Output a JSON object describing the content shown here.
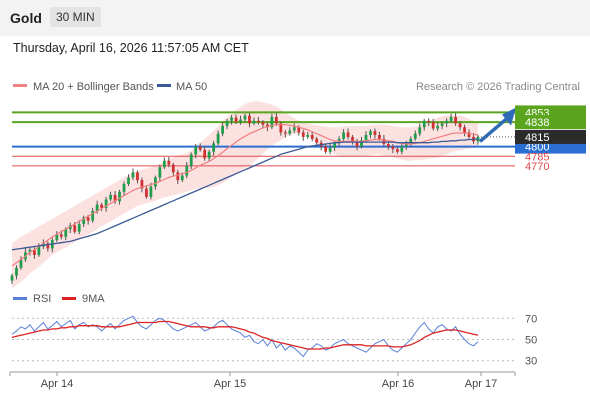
{
  "header": {
    "title": "Gold",
    "timeframe": "30 MIN"
  },
  "datetime": "Thursday, April 16, 2026 11:57:05 AM CET",
  "legend": {
    "bb_label": "MA 20 + Bollinger Bands",
    "ma50_label": "MA 50",
    "copyright": "Research © 2026 Trading Central",
    "rsi_label": "RSI",
    "rsi_ma_label": "9MA"
  },
  "colors": {
    "green_level": "#5aa51d",
    "blue_level": "#2a6ed4",
    "red_level": "#e04b4b",
    "current_price_bg": "#2b2b2b",
    "band_fill": "#fbd9d9",
    "ma20": "#f08080",
    "ma50": "#3a5a96",
    "rsi": "#5a7fd8",
    "rsi_ma": "#dd2222",
    "arrow": "#2f6ab4"
  },
  "chart_data": [
    {
      "type": "candlestick",
      "title": "",
      "x_ticks": [
        "Apr 14",
        "Apr 15",
        "Apr 16",
        "Apr 17"
      ],
      "ylim": [
        4590,
        4880
      ],
      "levels": [
        {
          "value": 4853,
          "label": "4853",
          "kind": "resistance"
        },
        {
          "value": 4838,
          "label": "4838",
          "kind": "resistance"
        },
        {
          "value": 4800,
          "label": "4800",
          "kind": "pivot"
        },
        {
          "value": 4785,
          "label": "4785",
          "kind": "support"
        },
        {
          "value": 4770,
          "label": "4770",
          "kind": "support"
        }
      ],
      "current_price": {
        "value": 4815,
        "label": "4815"
      },
      "close": [
        4600,
        4612,
        4625,
        4636,
        4640,
        4632,
        4645,
        4650,
        4642,
        4655,
        4664,
        4660,
        4672,
        4678,
        4668,
        4680,
        4690,
        4685,
        4700,
        4710,
        4705,
        4718,
        4725,
        4715,
        4730,
        4742,
        4752,
        4760,
        4748,
        4735,
        4722,
        4738,
        4752,
        4768,
        4778,
        4772,
        4760,
        4748,
        4755,
        4770,
        4788,
        4800,
        4795,
        4782,
        4792,
        4805,
        4820,
        4832,
        4840,
        4845,
        4838,
        4842,
        4848,
        4836,
        4840,
        4838,
        4834,
        4830,
        4846,
        4836,
        4822,
        4820,
        4825,
        4830,
        4822,
        4815,
        4818,
        4812,
        4806,
        4800,
        4792,
        4798,
        4806,
        4812,
        4822,
        4815,
        4808,
        4800,
        4810,
        4818,
        4824,
        4818,
        4812,
        4804,
        4800,
        4796,
        4792,
        4800,
        4806,
        4812,
        4820,
        4830,
        4840,
        4838,
        4828,
        4832,
        4836,
        4840,
        4846,
        4836,
        4830,
        4822,
        4815,
        4808,
        4815
      ],
      "ma20": [
        4615,
        4620,
        4625,
        4630,
        4636,
        4640,
        4645,
        4650,
        4655,
        4660,
        4664,
        4668,
        4672,
        4676,
        4680,
        4684,
        4688,
        4692,
        4696,
        4700,
        4704,
        4708,
        4712,
        4716,
        4720,
        4724,
        4728,
        4732,
        4735,
        4737,
        4739,
        4741,
        4743,
        4746,
        4749,
        4752,
        4754,
        4756,
        4758,
        4760,
        4763,
        4767,
        4771,
        4774,
        4777,
        4781,
        4786,
        4791,
        4797,
        4802,
        4807,
        4812,
        4816,
        4820,
        4823,
        4826,
        4829,
        4831,
        4833,
        4834,
        4834,
        4834,
        4833,
        4832,
        4830,
        4828,
        4826,
        4823,
        4820,
        4817,
        4814,
        4811,
        4809,
        4808,
        4808,
        4808,
        4808,
        4808,
        4808,
        4809,
        4810,
        4811,
        4811,
        4810,
        4809,
        4808,
        4806,
        4805,
        4804,
        4804,
        4805,
        4806,
        4808,
        4810,
        4812,
        4814,
        4816,
        4818,
        4820,
        4821,
        4821,
        4821,
        4820,
        4819,
        4818
      ],
      "bb_upper": [
        4650,
        4655,
        4660,
        4664,
        4668,
        4672,
        4676,
        4680,
        4684,
        4688,
        4692,
        4696,
        4700,
        4704,
        4708,
        4712,
        4716,
        4720,
        4724,
        4728,
        4732,
        4736,
        4740,
        4744,
        4748,
        4752,
        4756,
        4760,
        4762,
        4764,
        4766,
        4768,
        4770,
        4773,
        4777,
        4781,
        4784,
        4786,
        4788,
        4790,
        4794,
        4800,
        4806,
        4812,
        4818,
        4825,
        4832,
        4839,
        4846,
        4852,
        4857,
        4862,
        4866,
        4869,
        4870,
        4870,
        4869,
        4867,
        4865,
        4862,
        4858,
        4853,
        4848,
        4844,
        4840,
        4838,
        4836,
        4834,
        4833,
        4832,
        4831,
        4830,
        4830,
        4830,
        4831,
        4832,
        4832,
        4832,
        4832,
        4832,
        4833,
        4834,
        4834,
        4834,
        4833,
        4832,
        4831,
        4830,
        4830,
        4830,
        4831,
        4833,
        4836,
        4839,
        4842,
        4845,
        4847,
        4848,
        4849,
        4849,
        4848,
        4846,
        4843,
        4840,
        4836
      ],
      "bb_lower": [
        4580,
        4585,
        4590,
        4596,
        4604,
        4608,
        4614,
        4620,
        4626,
        4632,
        4636,
        4640,
        4644,
        4648,
        4652,
        4656,
        4660,
        4664,
        4668,
        4672,
        4676,
        4680,
        4684,
        4688,
        4692,
        4696,
        4700,
        4704,
        4708,
        4710,
        4712,
        4714,
        4716,
        4719,
        4721,
        4723,
        4724,
        4726,
        4728,
        4730,
        4732,
        4734,
        4736,
        4736,
        4736,
        4737,
        4740,
        4743,
        4748,
        4752,
        4757,
        4762,
        4766,
        4771,
        4776,
        4782,
        4789,
        4795,
        4801,
        4806,
        4810,
        4815,
        4818,
        4820,
        4820,
        4818,
        4816,
        4812,
        4807,
        4802,
        4797,
        4792,
        4788,
        4786,
        4785,
        4784,
        4784,
        4784,
        4784,
        4786,
        4787,
        4788,
        4788,
        4786,
        4785,
        4784,
        4781,
        4780,
        4778,
        4778,
        4779,
        4779,
        4780,
        4781,
        4782,
        4783,
        4785,
        4788,
        4791,
        4793,
        4794,
        4796,
        4797,
        4798,
        4800
      ],
      "ma50": [
        4640,
        4641,
        4642,
        4643,
        4644,
        4645,
        4646,
        4647,
        4648,
        4649,
        4650,
        4651,
        4652,
        4653,
        4655,
        4657,
        4659,
        4661,
        4663,
        4665,
        4668,
        4671,
        4674,
        4677,
        4680,
        4683,
        4686,
        4689,
        4692,
        4695,
        4698,
        4701,
        4704,
        4707,
        4710,
        4713,
        4716,
        4719,
        4722,
        4725,
        4728,
        4731,
        4734,
        4737,
        4740,
        4743,
        4746,
        4749,
        4752,
        4755,
        4758,
        4761,
        4764,
        4767,
        4770,
        4773,
        4776,
        4779,
        4782,
        4785,
        4788,
        4790,
        4792,
        4794,
        4796,
        4798,
        4800,
        4801,
        4802,
        4803,
        4804,
        4805,
        4806,
        4806,
        4807,
        4807,
        4807,
        4807,
        4807,
        4807,
        4807,
        4807,
        4807,
        4807,
        4807,
        4807,
        4806,
        4806,
        4806,
        4806,
        4806,
        4806,
        4806,
        4806,
        4807,
        4807,
        4808,
        4808,
        4809,
        4809,
        4810,
        4810,
        4811,
        4811,
        4812
      ]
    },
    {
      "type": "line",
      "title": "",
      "ylim": [
        25,
        75
      ],
      "y_ticks": [
        70,
        50,
        30
      ],
      "series": [
        {
          "name": "RSI",
          "values": [
            55,
            58,
            62,
            60,
            64,
            58,
            62,
            66,
            60,
            63,
            67,
            62,
            65,
            68,
            60,
            64,
            66,
            62,
            64,
            62,
            58,
            62,
            65,
            60,
            64,
            68,
            70,
            72,
            66,
            62,
            60,
            64,
            68,
            70,
            68,
            64,
            60,
            58,
            60,
            62,
            64,
            66,
            62,
            58,
            60,
            62,
            66,
            68,
            64,
            60,
            58,
            56,
            52,
            54,
            48,
            46,
            50,
            44,
            50,
            42,
            46,
            40,
            44,
            42,
            38,
            34,
            40,
            42,
            46,
            44,
            40,
            42,
            46,
            48,
            50,
            46,
            44,
            42,
            40,
            38,
            42,
            46,
            48,
            50,
            44,
            40,
            38,
            42,
            46,
            50,
            56,
            62,
            66,
            60,
            56,
            62,
            64,
            60,
            58,
            62,
            55,
            50,
            46,
            44,
            48
          ]
        },
        {
          "name": "9MA",
          "values": [
            52,
            53,
            54,
            55,
            56,
            57,
            58,
            59,
            59,
            60,
            60,
            61,
            61,
            62,
            62,
            63,
            63,
            63,
            63,
            63,
            62,
            62,
            62,
            62,
            62,
            63,
            64,
            65,
            66,
            66,
            66,
            66,
            66,
            67,
            67,
            67,
            66,
            65,
            64,
            63,
            62,
            62,
            62,
            62,
            61,
            61,
            62,
            62,
            62,
            62,
            61,
            60,
            59,
            57,
            56,
            54,
            52,
            51,
            49,
            48,
            47,
            46,
            45,
            44,
            43,
            42,
            41,
            41,
            41,
            41,
            42,
            42,
            43,
            44,
            45,
            45,
            45,
            45,
            45,
            44,
            44,
            44,
            44,
            44,
            44,
            43,
            43,
            43,
            44,
            45,
            47,
            49,
            52,
            54,
            56,
            57,
            58,
            59,
            59,
            59,
            58,
            57,
            56,
            55,
            54
          ]
        }
      ]
    }
  ]
}
